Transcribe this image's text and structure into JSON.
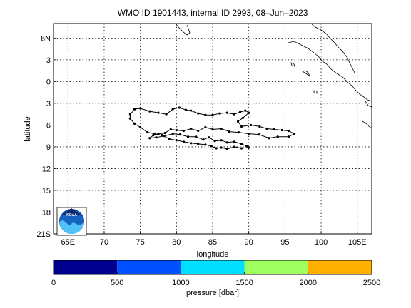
{
  "chart_data": {
    "type": "line",
    "title": "WMO ID 1901443, internal ID 2993, 08–Jun–2023",
    "xlabel": "longitude",
    "ylabel": "latitude",
    "xlim": [
      63,
      107
    ],
    "ylim": [
      -8,
      21
    ],
    "x_ticks": [
      65,
      70,
      75,
      80,
      85,
      90,
      95,
      100,
      105
    ],
    "x_tick_labels": [
      "65E",
      "70",
      "75",
      "80",
      "85",
      "90",
      "95",
      "100",
      "105E"
    ],
    "y_ticks": [
      -6,
      -3,
      0,
      3,
      6,
      9,
      12,
      15,
      18,
      21
    ],
    "y_tick_labels": [
      "6N",
      "3",
      "0",
      "3",
      "6",
      "9",
      "12",
      "15",
      "18",
      "21S"
    ],
    "grid": true,
    "series": [
      {
        "x": [
          74.2,
          75.0,
          76.3,
          77.5,
          78.6,
          79.5,
          80.4,
          81.3,
          82.0,
          83.0,
          84.0,
          85.0,
          86.0,
          87.0,
          88.0,
          88.8,
          89.5,
          90.0,
          89.2,
          88.5,
          89.0,
          90.3,
          91.5,
          92.5,
          93.5,
          94.6,
          95.5,
          96.3,
          95.5,
          94.0,
          92.8,
          91.4,
          90.0,
          88.6,
          87.3,
          86.2,
          85.0,
          84.0,
          83.0,
          82.0,
          81.0,
          80.0,
          79.2,
          78.4,
          77.5,
          76.8,
          76.3,
          77.2,
          78.3,
          79.5,
          80.5,
          81.6,
          82.7,
          83.7,
          84.5,
          85.3,
          86.2,
          87.0,
          88.0,
          89.0,
          89.7,
          90.0,
          89.0,
          88.0,
          87.0,
          86.2,
          85.5,
          84.8,
          84.0,
          83.0,
          82.0,
          81.0,
          80.0,
          79.0,
          78.0,
          77.0,
          76.0,
          75.0,
          74.2,
          73.6,
          73.6,
          74.3
        ],
        "y": [
          3.8,
          3.7,
          4.1,
          4.3,
          4.5,
          3.8,
          3.6,
          3.9,
          4.0,
          4.4,
          4.6,
          4.6,
          4.4,
          4.3,
          4.5,
          4.2,
          4.0,
          4.3,
          5.0,
          5.5,
          6.2,
          6.0,
          6.2,
          6.5,
          6.6,
          6.7,
          6.8,
          7.2,
          7.6,
          7.6,
          7.8,
          7.3,
          7.2,
          7.0,
          6.9,
          6.5,
          6.6,
          6.3,
          6.8,
          6.5,
          6.8,
          6.7,
          6.6,
          7.1,
          7.2,
          7.4,
          7.8,
          7.7,
          7.5,
          7.2,
          7.3,
          7.6,
          7.6,
          8.0,
          7.7,
          8.2,
          8.1,
          8.4,
          8.3,
          8.6,
          8.9,
          9.1,
          9.2,
          9.0,
          9.3,
          9.1,
          9.2,
          8.9,
          8.7,
          8.6,
          8.5,
          8.3,
          8.1,
          7.9,
          7.4,
          7.2,
          7.0,
          6.3,
          5.8,
          5.1,
          4.5,
          3.8
        ]
      }
    ],
    "colorbar": {
      "label": "pressure [dbar]",
      "ticks": [
        0,
        500,
        1000,
        1500,
        2000,
        2500
      ],
      "colors": [
        "#00008f",
        "#0050ff",
        "#00dfff",
        "#9fff5f",
        "#ffaf00"
      ]
    }
  },
  "logo_text": "NOAA"
}
